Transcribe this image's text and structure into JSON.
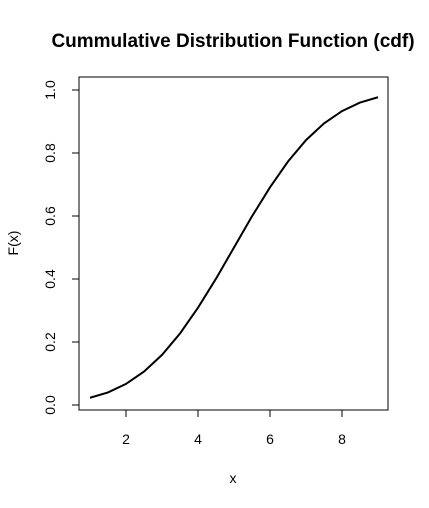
{
  "chart_data": {
    "type": "line",
    "title": "Cummulative Distribution Function (cdf)",
    "xlabel": "x",
    "ylabel": "F(x)",
    "xlim": [
      1,
      9
    ],
    "ylim": [
      0,
      1
    ],
    "x_ticks": [
      2,
      4,
      6,
      8
    ],
    "y_ticks": [
      0.0,
      0.2,
      0.4,
      0.6,
      0.8,
      1.0
    ],
    "x_tick_labels": [
      "2",
      "4",
      "6",
      "8"
    ],
    "y_tick_labels": [
      "0.0",
      "0.2",
      "0.4",
      "0.6",
      "0.8",
      "1.0"
    ],
    "grid": false,
    "line_color": "#000000",
    "series": [
      {
        "x": [
          1,
          1.5,
          2,
          2.5,
          3,
          3.5,
          4,
          4.5,
          5,
          5.5,
          6,
          6.5,
          7,
          7.5,
          8,
          8.5,
          9
        ],
        "values": [
          0.023,
          0.04,
          0.067,
          0.106,
          0.159,
          0.227,
          0.309,
          0.401,
          0.5,
          0.599,
          0.691,
          0.773,
          0.841,
          0.894,
          0.933,
          0.96,
          0.977
        ]
      }
    ]
  }
}
